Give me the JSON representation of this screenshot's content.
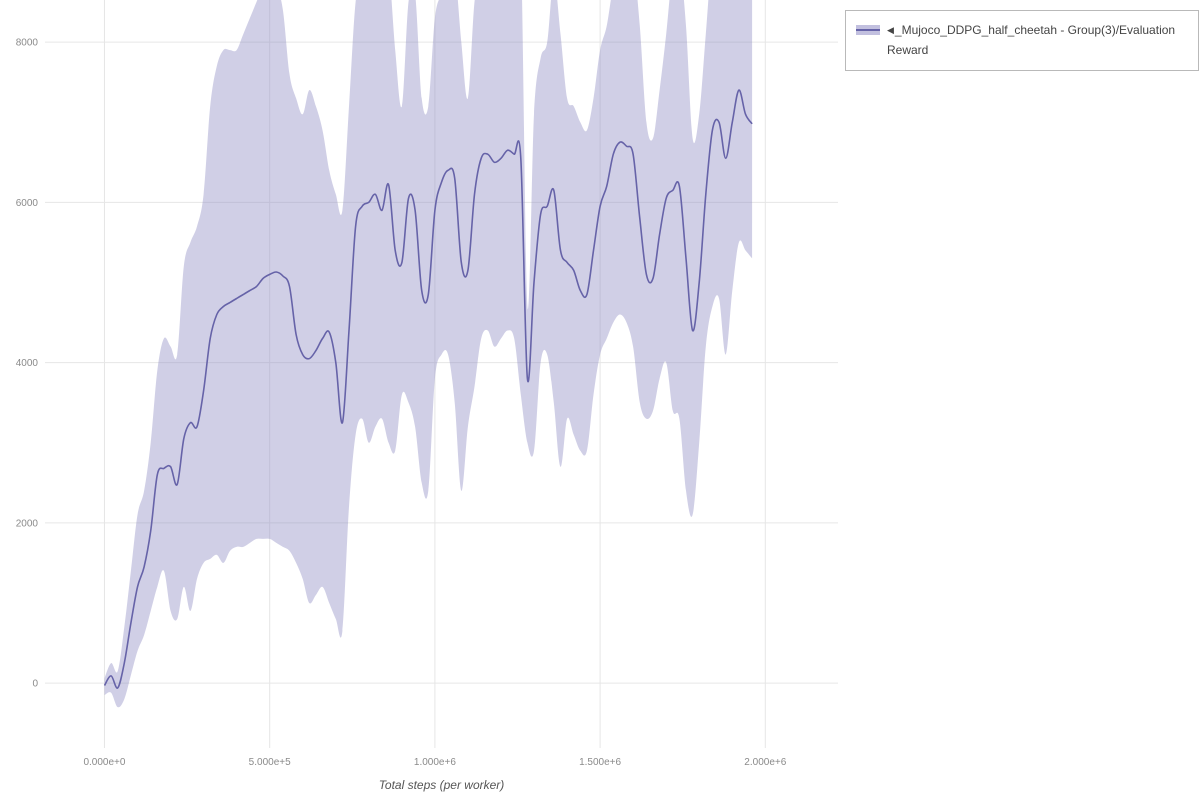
{
  "page": {
    "background": "#ffffff"
  },
  "legend": {
    "icon": "◀",
    "label": "_Mujoco_DDPG_half_cheetah - Group(3)/Evaluation Reward"
  },
  "style": {
    "line_color": "#6663a8",
    "band_color": "#8f8cc4",
    "band_opacity": 0.42,
    "grid_color": "#e6e6e6",
    "tick_color": "#8a8a8a"
  },
  "chart_data": {
    "type": "line",
    "title": "",
    "xlabel": "Total steps (per worker)",
    "ylabel": "",
    "grid": true,
    "legend_position": "top-right",
    "xlim": [
      -180000,
      2220000
    ],
    "ylim": [
      -810,
      8525
    ],
    "x_ticks": [
      {
        "value": 0,
        "label": "0.000e+0"
      },
      {
        "value": 500000,
        "label": "5.000e+5"
      },
      {
        "value": 1000000,
        "label": "1.000e+6"
      },
      {
        "value": 1500000,
        "label": "1.500e+6"
      },
      {
        "value": 2000000,
        "label": "2.000e+6"
      }
    ],
    "y_ticks": [
      {
        "value": 0,
        "label": "0"
      },
      {
        "value": 2000,
        "label": "2000"
      },
      {
        "value": 4000,
        "label": "4000"
      },
      {
        "value": 6000,
        "label": "6000"
      },
      {
        "value": 8000,
        "label": "8000"
      }
    ],
    "series": [
      {
        "name": "_Mujoco_DDPG_half_cheetah - Group(3)/Evaluation Reward",
        "color": "#6663a8",
        "band_color": "#8f8cc4",
        "kind": "mean_with_band"
      }
    ],
    "columns": [
      "step",
      "mean",
      "lower",
      "upper"
    ],
    "rows": [
      [
        0,
        -30,
        -150,
        60
      ],
      [
        20000,
        90,
        -120,
        250
      ],
      [
        40000,
        -60,
        -300,
        150
      ],
      [
        60000,
        250,
        -200,
        700
      ],
      [
        80000,
        750,
        100,
        1400
      ],
      [
        100000,
        1200,
        400,
        2100
      ],
      [
        120000,
        1450,
        600,
        2400
      ],
      [
        140000,
        1900,
        900,
        3000
      ],
      [
        160000,
        2600,
        1200,
        3900
      ],
      [
        180000,
        2680,
        1400,
        4300
      ],
      [
        200000,
        2700,
        900,
        4200
      ],
      [
        220000,
        2480,
        800,
        4100
      ],
      [
        240000,
        3050,
        1200,
        5200
      ],
      [
        260000,
        3250,
        900,
        5500
      ],
      [
        280000,
        3200,
        1300,
        5700
      ],
      [
        300000,
        3650,
        1500,
        6100
      ],
      [
        320000,
        4300,
        1550,
        7200
      ],
      [
        340000,
        4600,
        1600,
        7700
      ],
      [
        360000,
        4700,
        1500,
        7900
      ],
      [
        380000,
        4750,
        1650,
        7900
      ],
      [
        400000,
        4800,
        1700,
        7900
      ],
      [
        420000,
        4850,
        1700,
        8100
      ],
      [
        440000,
        4900,
        1750,
        8300
      ],
      [
        460000,
        4950,
        1800,
        8500
      ],
      [
        480000,
        5050,
        1800,
        8700
      ],
      [
        500000,
        5100,
        1800,
        8800
      ],
      [
        520000,
        5130,
        1750,
        8700
      ],
      [
        540000,
        5080,
        1700,
        8400
      ],
      [
        560000,
        4950,
        1650,
        7600
      ],
      [
        580000,
        4350,
        1500,
        7300
      ],
      [
        600000,
        4100,
        1300,
        7100
      ],
      [
        620000,
        4050,
        1000,
        7400
      ],
      [
        640000,
        4150,
        1100,
        7200
      ],
      [
        660000,
        4300,
        1200,
        6900
      ],
      [
        680000,
        4380,
        1000,
        6400
      ],
      [
        700000,
        4000,
        800,
        6100
      ],
      [
        720000,
        3250,
        650,
        5900
      ],
      [
        740000,
        4400,
        2200,
        7200
      ],
      [
        760000,
        5700,
        3100,
        8500
      ],
      [
        780000,
        5950,
        3300,
        8800
      ],
      [
        800000,
        6000,
        3000,
        8900
      ],
      [
        820000,
        6100,
        3200,
        9000
      ],
      [
        840000,
        5900,
        3300,
        8600
      ],
      [
        860000,
        6220,
        3000,
        8900
      ],
      [
        880000,
        5400,
        2900,
        7900
      ],
      [
        900000,
        5250,
        3600,
        7200
      ],
      [
        920000,
        6050,
        3500,
        8500
      ],
      [
        940000,
        5900,
        3200,
        8600
      ],
      [
        960000,
        4900,
        2500,
        7300
      ],
      [
        980000,
        4850,
        2400,
        7200
      ],
      [
        1000000,
        5900,
        3800,
        8300
      ],
      [
        1020000,
        6250,
        4100,
        8600
      ],
      [
        1040000,
        6400,
        4100,
        8800
      ],
      [
        1060000,
        6300,
        3500,
        8900
      ],
      [
        1080000,
        5250,
        2400,
        8000
      ],
      [
        1100000,
        5150,
        3200,
        7300
      ],
      [
        1120000,
        6100,
        3700,
        8500
      ],
      [
        1140000,
        6550,
        4300,
        8900
      ],
      [
        1160000,
        6600,
        4400,
        8900
      ],
      [
        1180000,
        6500,
        4200,
        8800
      ],
      [
        1200000,
        6550,
        4300,
        8900
      ],
      [
        1220000,
        6650,
        4400,
        9000
      ],
      [
        1240000,
        6600,
        4300,
        8900
      ],
      [
        1260000,
        6550,
        3600,
        9200
      ],
      [
        1280000,
        3800,
        3000,
        4700
      ],
      [
        1300000,
        5000,
        2900,
        7100
      ],
      [
        1320000,
        5850,
        4000,
        7800
      ],
      [
        1340000,
        5950,
        4100,
        8000
      ],
      [
        1360000,
        6150,
        3500,
        8800
      ],
      [
        1380000,
        5400,
        2700,
        8100
      ],
      [
        1400000,
        5250,
        3300,
        7300
      ],
      [
        1420000,
        5150,
        3100,
        7200
      ],
      [
        1440000,
        4900,
        2900,
        7000
      ],
      [
        1460000,
        4850,
        2900,
        6900
      ],
      [
        1480000,
        5400,
        3600,
        7300
      ],
      [
        1500000,
        5950,
        4100,
        7900
      ],
      [
        1520000,
        6200,
        4300,
        8200
      ],
      [
        1540000,
        6600,
        4500,
        8700
      ],
      [
        1560000,
        6750,
        4600,
        8900
      ],
      [
        1580000,
        6700,
        4500,
        8900
      ],
      [
        1600000,
        6600,
        4200,
        9000
      ],
      [
        1620000,
        5800,
        3500,
        8200
      ],
      [
        1640000,
        5100,
        3300,
        7000
      ],
      [
        1660000,
        5050,
        3400,
        6800
      ],
      [
        1680000,
        5600,
        3800,
        7400
      ],
      [
        1700000,
        6050,
        4000,
        8100
      ],
      [
        1720000,
        6150,
        3400,
        8900
      ],
      [
        1740000,
        6200,
        3300,
        9000
      ],
      [
        1760000,
        5300,
        2400,
        8200
      ],
      [
        1780000,
        4400,
        2100,
        6800
      ],
      [
        1800000,
        5000,
        3000,
        7100
      ],
      [
        1820000,
        6100,
        4200,
        8100
      ],
      [
        1840000,
        6900,
        4700,
        9100
      ],
      [
        1860000,
        7000,
        4800,
        9200
      ],
      [
        1880000,
        6550,
        4100,
        9000
      ],
      [
        1900000,
        7000,
        4900,
        9100
      ],
      [
        1920000,
        7400,
        5500,
        9300
      ],
      [
        1940000,
        7100,
        5400,
        8800
      ],
      [
        1960000,
        6980,
        5300,
        8700
      ]
    ]
  }
}
